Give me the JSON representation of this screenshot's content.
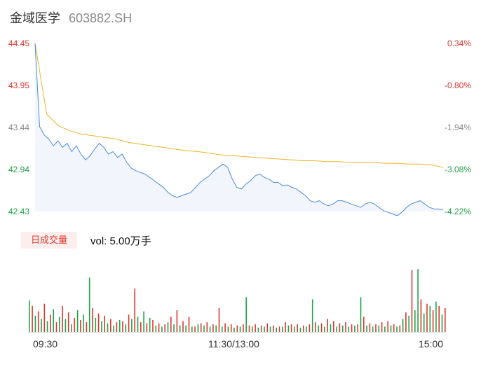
{
  "header": {
    "name": "金域医学",
    "code": "603882.SH"
  },
  "colors": {
    "up": "#e0362f",
    "down": "#1fa34a",
    "neutral": "#8a8a8a",
    "price_line": "#4a8ae6",
    "avg_line": "#f0b429",
    "area_fill": "#f2f6fc"
  },
  "chart_data": {
    "type": "line",
    "price_axis": {
      "ticks": [
        "44.45",
        "43.95",
        "43.44",
        "42.94",
        "42.43"
      ],
      "pct_ticks": [
        "0.34%",
        "-0.80%",
        "-1.94%",
        "-3.08%",
        "-4.22%"
      ],
      "ylim": [
        42.43,
        44.45
      ]
    },
    "x_ticks": [
      "09:30",
      "11:30/13:00",
      "15:00"
    ],
    "series": [
      {
        "name": "price",
        "values": [
          44.45,
          43.45,
          43.35,
          43.3,
          43.22,
          43.28,
          43.2,
          43.25,
          43.15,
          43.22,
          43.12,
          43.05,
          43.1,
          43.18,
          43.25,
          43.2,
          43.12,
          43.15,
          43.08,
          43.12,
          43.02,
          42.95,
          42.92,
          42.9,
          42.88,
          42.84,
          42.8,
          42.76,
          42.72,
          42.66,
          42.62,
          42.6,
          42.62,
          42.64,
          42.66,
          42.72,
          42.78,
          42.82,
          42.86,
          42.92,
          42.96,
          43.0,
          42.96,
          42.82,
          42.72,
          42.7,
          42.76,
          42.8,
          42.86,
          42.88,
          42.84,
          42.82,
          42.78,
          42.78,
          42.74,
          42.75,
          42.72,
          42.7,
          42.66,
          42.62,
          42.56,
          42.54,
          42.56,
          42.52,
          42.5,
          42.52,
          42.56,
          42.56,
          42.54,
          42.52,
          42.5,
          42.48,
          42.52,
          42.54,
          42.52,
          42.48,
          42.44,
          42.42,
          42.4,
          42.38,
          42.42,
          42.48,
          42.52,
          42.54,
          42.56,
          42.52,
          42.48,
          42.46,
          42.46,
          42.45
        ]
      },
      {
        "name": "avg",
        "values": [
          44.45,
          43.6,
          43.46,
          43.4,
          43.36,
          43.34,
          43.32,
          43.3,
          43.26,
          43.24,
          43.22,
          43.2,
          43.18,
          43.16,
          43.15,
          43.13,
          43.11,
          43.1,
          43.09,
          43.08,
          43.07,
          43.06,
          43.05,
          43.04,
          43.04,
          43.03,
          43.03,
          43.02,
          43.02,
          43.02,
          43.01,
          43.01,
          43.0,
          43.0,
          42.99,
          42.96
        ]
      }
    ],
    "volume": {
      "label": "日成交量",
      "vol_text": "vol: 5.00万手",
      "bars": [
        {
          "v": 0.29,
          "c": "down"
        },
        {
          "v": 0.24,
          "c": "up"
        },
        {
          "v": 0.15,
          "c": "down"
        },
        {
          "v": 0.19,
          "c": "up"
        },
        {
          "v": 0.12,
          "c": "down"
        },
        {
          "v": 0.26,
          "c": "up"
        },
        {
          "v": 0.1,
          "c": "down"
        },
        {
          "v": 0.16,
          "c": "up"
        },
        {
          "v": 0.21,
          "c": "down"
        },
        {
          "v": 0.09,
          "c": "up"
        },
        {
          "v": 0.14,
          "c": "down"
        },
        {
          "v": 0.24,
          "c": "up"
        },
        {
          "v": 0.12,
          "c": "down"
        },
        {
          "v": 0.18,
          "c": "up"
        },
        {
          "v": 0.07,
          "c": "down"
        },
        {
          "v": 0.13,
          "c": "up"
        },
        {
          "v": 0.2,
          "c": "down"
        },
        {
          "v": 0.11,
          "c": "up"
        },
        {
          "v": 0.16,
          "c": "down"
        },
        {
          "v": 0.09,
          "c": "up"
        },
        {
          "v": 0.5,
          "c": "down"
        },
        {
          "v": 0.22,
          "c": "up"
        },
        {
          "v": 0.13,
          "c": "down"
        },
        {
          "v": 0.17,
          "c": "up"
        },
        {
          "v": 0.1,
          "c": "down"
        },
        {
          "v": 0.15,
          "c": "up"
        },
        {
          "v": 0.08,
          "c": "down"
        },
        {
          "v": 0.12,
          "c": "up"
        },
        {
          "v": 0.06,
          "c": "down"
        },
        {
          "v": 0.09,
          "c": "up"
        },
        {
          "v": 0.11,
          "c": "down"
        },
        {
          "v": 0.1,
          "c": "up"
        },
        {
          "v": 0.07,
          "c": "down"
        },
        {
          "v": 0.16,
          "c": "up"
        },
        {
          "v": 0.12,
          "c": "down"
        },
        {
          "v": 0.4,
          "c": "up"
        },
        {
          "v": 0.14,
          "c": "down"
        },
        {
          "v": 0.09,
          "c": "up"
        },
        {
          "v": 0.19,
          "c": "down"
        },
        {
          "v": 0.08,
          "c": "up"
        },
        {
          "v": 0.13,
          "c": "down"
        },
        {
          "v": 0.11,
          "c": "up"
        },
        {
          "v": 0.06,
          "c": "down"
        },
        {
          "v": 0.08,
          "c": "up"
        },
        {
          "v": 0.05,
          "c": "down"
        },
        {
          "v": 0.07,
          "c": "up"
        },
        {
          "v": 0.09,
          "c": "down"
        },
        {
          "v": 0.14,
          "c": "up"
        },
        {
          "v": 0.07,
          "c": "down"
        },
        {
          "v": 0.2,
          "c": "up"
        },
        {
          "v": 0.06,
          "c": "down"
        },
        {
          "v": 0.1,
          "c": "up"
        },
        {
          "v": 0.06,
          "c": "down"
        },
        {
          "v": 0.14,
          "c": "up"
        },
        {
          "v": 0.05,
          "c": "down"
        },
        {
          "v": 0.05,
          "c": "up"
        },
        {
          "v": 0.07,
          "c": "down"
        },
        {
          "v": 0.08,
          "c": "up"
        },
        {
          "v": 0.06,
          "c": "down"
        },
        {
          "v": 0.09,
          "c": "up"
        },
        {
          "v": 0.05,
          "c": "down"
        },
        {
          "v": 0.07,
          "c": "up"
        },
        {
          "v": 0.06,
          "c": "down"
        },
        {
          "v": 0.22,
          "c": "up"
        },
        {
          "v": 0.05,
          "c": "down"
        },
        {
          "v": 0.08,
          "c": "up"
        },
        {
          "v": 0.05,
          "c": "down"
        },
        {
          "v": 0.07,
          "c": "up"
        },
        {
          "v": 0.04,
          "c": "down"
        },
        {
          "v": 0.06,
          "c": "up"
        },
        {
          "v": 0.05,
          "c": "down"
        },
        {
          "v": 0.07,
          "c": "up"
        },
        {
          "v": 0.32,
          "c": "down"
        },
        {
          "v": 0.06,
          "c": "up"
        },
        {
          "v": 0.05,
          "c": "down"
        },
        {
          "v": 0.07,
          "c": "up"
        },
        {
          "v": 0.04,
          "c": "down"
        },
        {
          "v": 0.06,
          "c": "up"
        },
        {
          "v": 0.05,
          "c": "down"
        },
        {
          "v": 0.08,
          "c": "up"
        },
        {
          "v": 0.05,
          "c": "down"
        },
        {
          "v": 0.06,
          "c": "up"
        },
        {
          "v": 0.04,
          "c": "down"
        },
        {
          "v": 0.05,
          "c": "up"
        },
        {
          "v": 0.05,
          "c": "down"
        },
        {
          "v": 0.09,
          "c": "up"
        },
        {
          "v": 0.06,
          "c": "down"
        },
        {
          "v": 0.07,
          "c": "up"
        },
        {
          "v": 0.05,
          "c": "down"
        },
        {
          "v": 0.07,
          "c": "up"
        },
        {
          "v": 0.04,
          "c": "down"
        },
        {
          "v": 0.06,
          "c": "up"
        },
        {
          "v": 0.05,
          "c": "down"
        },
        {
          "v": 0.07,
          "c": "up"
        },
        {
          "v": 0.3,
          "c": "down"
        },
        {
          "v": 0.09,
          "c": "up"
        },
        {
          "v": 0.06,
          "c": "down"
        },
        {
          "v": 0.08,
          "c": "up"
        },
        {
          "v": 0.05,
          "c": "down"
        },
        {
          "v": 0.12,
          "c": "up"
        },
        {
          "v": 0.07,
          "c": "down"
        },
        {
          "v": 0.1,
          "c": "up"
        },
        {
          "v": 0.05,
          "c": "down"
        },
        {
          "v": 0.08,
          "c": "up"
        },
        {
          "v": 0.06,
          "c": "down"
        },
        {
          "v": 0.09,
          "c": "up"
        },
        {
          "v": 0.05,
          "c": "down"
        },
        {
          "v": 0.07,
          "c": "up"
        },
        {
          "v": 0.06,
          "c": "down"
        },
        {
          "v": 0.07,
          "c": "up"
        },
        {
          "v": 0.32,
          "c": "down"
        },
        {
          "v": 0.14,
          "c": "up"
        },
        {
          "v": 0.06,
          "c": "down"
        },
        {
          "v": 0.08,
          "c": "up"
        },
        {
          "v": 0.05,
          "c": "down"
        },
        {
          "v": 0.07,
          "c": "up"
        },
        {
          "v": 0.06,
          "c": "down"
        },
        {
          "v": 0.09,
          "c": "up"
        },
        {
          "v": 0.05,
          "c": "down"
        },
        {
          "v": 0.1,
          "c": "up"
        },
        {
          "v": 0.06,
          "c": "down"
        },
        {
          "v": 0.07,
          "c": "up"
        },
        {
          "v": 0.05,
          "c": "down"
        },
        {
          "v": 0.06,
          "c": "up"
        },
        {
          "v": 0.12,
          "c": "down"
        },
        {
          "v": 0.18,
          "c": "up"
        },
        {
          "v": 0.15,
          "c": "down"
        },
        {
          "v": 0.57,
          "c": "up"
        },
        {
          "v": 0.2,
          "c": "down"
        },
        {
          "v": 0.58,
          "c": "down"
        },
        {
          "v": 0.3,
          "c": "up"
        },
        {
          "v": 0.17,
          "c": "down"
        },
        {
          "v": 0.26,
          "c": "up"
        },
        {
          "v": 0.24,
          "c": "down"
        },
        {
          "v": 0.2,
          "c": "up"
        },
        {
          "v": 0.28,
          "c": "down"
        },
        {
          "v": 0.24,
          "c": "up"
        },
        {
          "v": 0.16,
          "c": "down"
        },
        {
          "v": 0.22,
          "c": "up"
        }
      ]
    }
  }
}
